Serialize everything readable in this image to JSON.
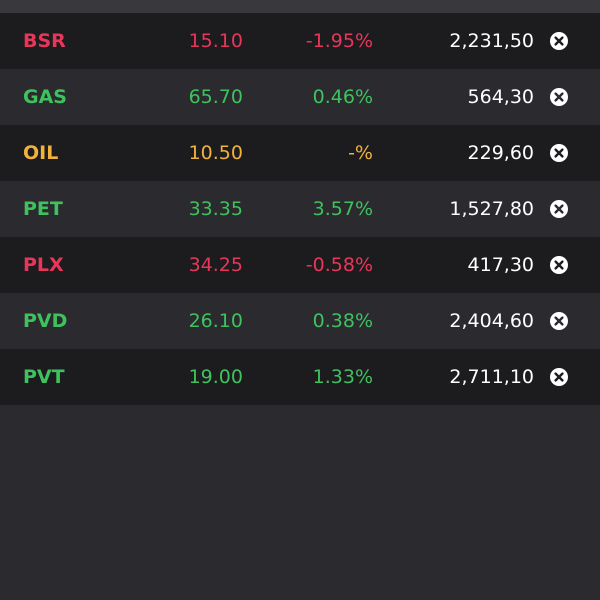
{
  "colors": {
    "down": "#e8365a",
    "up": "#3ec25e",
    "flat": "#f0b23c",
    "text": "#ffffff"
  },
  "watchlist": {
    "rows": [
      {
        "symbol": "BSR",
        "price": "15.10",
        "change": "-1.95%",
        "volume": "2,231,50",
        "status": "down",
        "remove_icon": "close-circle-icon"
      },
      {
        "symbol": "GAS",
        "price": "65.70",
        "change": "0.46%",
        "volume": "564,30",
        "status": "up",
        "remove_icon": "close-circle-icon"
      },
      {
        "symbol": "OIL",
        "price": "10.50",
        "change": "-%",
        "volume": "229,60",
        "status": "flat",
        "remove_icon": "close-circle-icon"
      },
      {
        "symbol": "PET",
        "price": "33.35",
        "change": "3.57%",
        "volume": "1,527,80",
        "status": "up",
        "remove_icon": "close-circle-icon"
      },
      {
        "symbol": "PLX",
        "price": "34.25",
        "change": "-0.58%",
        "volume": "417,30",
        "status": "down",
        "remove_icon": "close-circle-icon"
      },
      {
        "symbol": "PVD",
        "price": "26.10",
        "change": "0.38%",
        "volume": "2,404,60",
        "status": "up",
        "remove_icon": "close-circle-icon"
      },
      {
        "symbol": "PVT",
        "price": "19.00",
        "change": "1.33%",
        "volume": "2,711,10",
        "status": "up",
        "remove_icon": "close-circle-icon"
      }
    ]
  }
}
